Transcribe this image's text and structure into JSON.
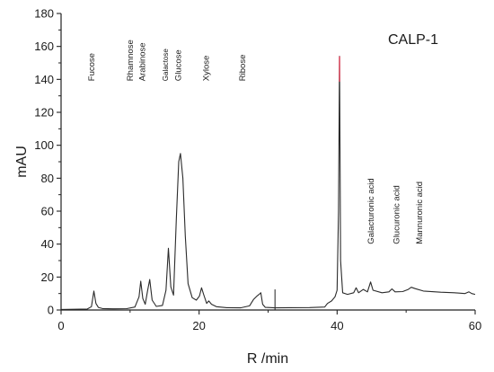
{
  "chart_data": {
    "type": "line",
    "title": "CALP-1",
    "xlabel": "R /min",
    "ylabel": "mAU",
    "xlim": [
      0,
      60
    ],
    "ylim": [
      0,
      180
    ],
    "xticks": [
      0,
      20,
      40,
      60
    ],
    "yticks": [
      0,
      20,
      40,
      60,
      80,
      100,
      120,
      140,
      160,
      180
    ],
    "grid": false,
    "legend": "none",
    "colors": {
      "line": "#2b2b2b",
      "peak_top": "#e0304a",
      "marker": "#d9303a"
    },
    "series": [
      {
        "points": [
          [
            0,
            0.3
          ],
          [
            3.8,
            0.6
          ],
          [
            4.4,
            2.0
          ],
          [
            4.75,
            11.5
          ],
          [
            5.05,
            4.0
          ],
          [
            5.4,
            1.6
          ],
          [
            6.0,
            0.9
          ],
          [
            7.5,
            0.7
          ],
          [
            9.5,
            0.8
          ],
          [
            10.7,
            1.8
          ],
          [
            11.3,
            8.0
          ],
          [
            11.55,
            17.5
          ],
          [
            11.85,
            7.0
          ],
          [
            12.2,
            3.5
          ],
          [
            12.55,
            12.0
          ],
          [
            12.85,
            18.5
          ],
          [
            13.2,
            6.0
          ],
          [
            13.8,
            2.2
          ],
          [
            14.7,
            2.8
          ],
          [
            15.2,
            12.0
          ],
          [
            15.55,
            37.5
          ],
          [
            15.9,
            14.0
          ],
          [
            16.3,
            9.0
          ],
          [
            16.7,
            55.0
          ],
          [
            17.05,
            90.0
          ],
          [
            17.3,
            95.0
          ],
          [
            17.65,
            80.0
          ],
          [
            18.0,
            45.0
          ],
          [
            18.4,
            16.0
          ],
          [
            19.0,
            7.5
          ],
          [
            19.6,
            6.0
          ],
          [
            20.05,
            8.5
          ],
          [
            20.35,
            13.5
          ],
          [
            20.7,
            9.0
          ],
          [
            21.1,
            4.0
          ],
          [
            21.4,
            5.5
          ],
          [
            21.8,
            3.5
          ],
          [
            22.5,
            2.0
          ],
          [
            24.0,
            1.4
          ],
          [
            26.0,
            1.3
          ],
          [
            27.3,
            2.5
          ],
          [
            27.9,
            6.5
          ],
          [
            28.4,
            8.5
          ],
          [
            28.7,
            9.5
          ],
          [
            28.95,
            10.5
          ],
          [
            29.2,
            3.5
          ],
          [
            29.6,
            1.6
          ],
          [
            31.0,
            1.3
          ],
          [
            33.0,
            1.4
          ],
          [
            36.0,
            1.5
          ],
          [
            38.2,
            1.8
          ],
          [
            38.6,
            4.0
          ],
          [
            39.2,
            5.5
          ],
          [
            39.7,
            8.0
          ],
          [
            40.0,
            12.0
          ],
          [
            40.2,
            60.0
          ],
          [
            40.35,
            154.0
          ],
          [
            40.5,
            30.0
          ],
          [
            40.8,
            10.5
          ],
          [
            41.5,
            9.5
          ],
          [
            42.4,
            10.5
          ],
          [
            42.75,
            13.5
          ],
          [
            43.1,
            10.5
          ],
          [
            43.8,
            12.5
          ],
          [
            44.4,
            11.0
          ],
          [
            44.85,
            17.0
          ],
          [
            45.2,
            12.0
          ],
          [
            46.5,
            10.5
          ],
          [
            47.5,
            11.0
          ],
          [
            47.95,
            12.8
          ],
          [
            48.4,
            11.0
          ],
          [
            49.5,
            11.2
          ],
          [
            50.3,
            12.5
          ],
          [
            50.75,
            13.8
          ],
          [
            51.3,
            13.0
          ],
          [
            52.5,
            11.5
          ],
          [
            55.0,
            10.8
          ],
          [
            57.0,
            10.5
          ],
          [
            58.5,
            10.0
          ],
          [
            59.1,
            11.0
          ],
          [
            59.5,
            10.0
          ],
          [
            60.0,
            9.5
          ]
        ]
      }
    ],
    "markers": [
      {
        "x": 31.0,
        "y_from": 0,
        "y_to": 12.5,
        "color": "#d9303a"
      }
    ],
    "annotations": [
      {
        "text": "Fucose",
        "x": 4.8,
        "y": 139,
        "rotate": -90
      },
      {
        "text": "Rhamnose",
        "x": 10.4,
        "y": 139,
        "rotate": -90
      },
      {
        "text": "Arabinose",
        "x": 12.2,
        "y": 139,
        "rotate": -90
      },
      {
        "text": "Galactose",
        "x": 15.5,
        "y": 139,
        "rotate": -90,
        "size": "small"
      },
      {
        "text": "Glucose",
        "x": 17.4,
        "y": 139,
        "rotate": -90
      },
      {
        "text": "Xylose",
        "x": 21.4,
        "y": 139,
        "rotate": -90
      },
      {
        "text": "Ribose",
        "x": 26.7,
        "y": 139,
        "rotate": -90
      },
      {
        "text": "Galacturonic acid",
        "x": 45.3,
        "y": 40,
        "rotate": -90
      },
      {
        "text": "Glucuronic acid",
        "x": 49.0,
        "y": 40,
        "rotate": -90
      },
      {
        "text": "Mannuronic acid",
        "x": 52.3,
        "y": 40,
        "rotate": -90
      }
    ]
  }
}
